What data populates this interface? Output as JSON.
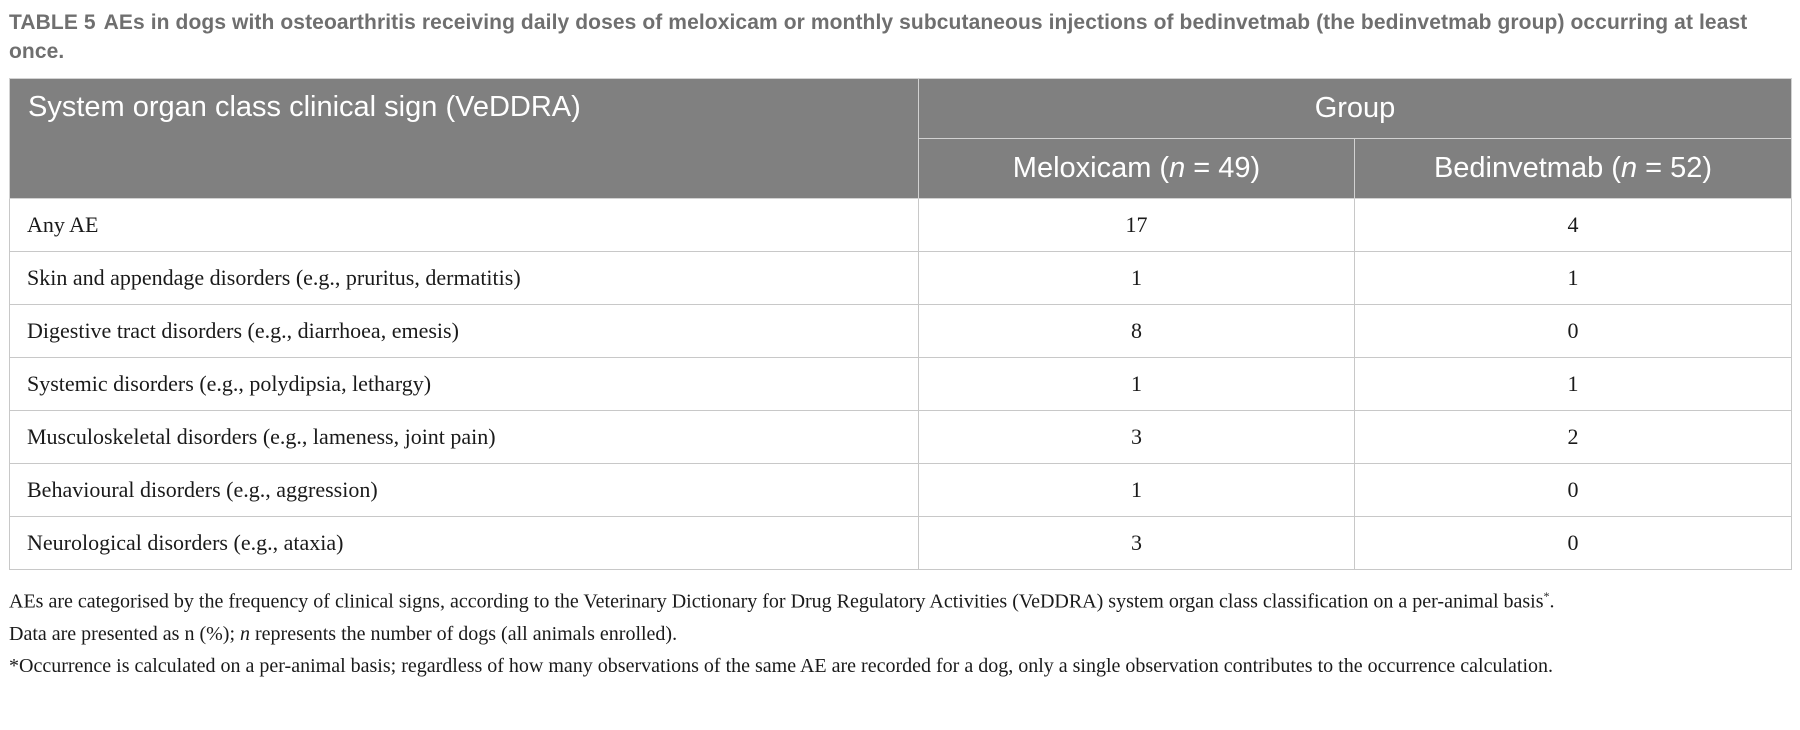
{
  "caption": {
    "label": "TABLE 5",
    "text": "AEs in dogs with osteoarthritis receiving daily doses of meloxicam or monthly subcutaneous injections of bedinvetmab (the bedinvetmab group) occurring at least once."
  },
  "table": {
    "header": {
      "system_col": "System organ class clinical sign (VeDDRA)",
      "group": "Group",
      "meloxicam": {
        "name": "Meloxicam",
        "n_symbol": "n",
        "n_rest": " = 49)"
      },
      "bedinvetmab": {
        "name": "Bedinvetmab",
        "n_symbol": "n",
        "n_rest": " = 52)"
      }
    },
    "rows": [
      {
        "label": "Any AE",
        "meloxicam": "17",
        "bedinvetmab": "4"
      },
      {
        "label": "Skin and appendage disorders (e.g., pruritus, dermatitis)",
        "meloxicam": "1",
        "bedinvetmab": "1"
      },
      {
        "label": "Digestive tract disorders (e.g., diarrhoea, emesis)",
        "meloxicam": "8",
        "bedinvetmab": "0"
      },
      {
        "label": "Systemic disorders (e.g., polydipsia, lethargy)",
        "meloxicam": "1",
        "bedinvetmab": "1"
      },
      {
        "label": "Musculoskeletal disorders (e.g., lameness, joint pain)",
        "meloxicam": "3",
        "bedinvetmab": "2"
      },
      {
        "label": "Behavioural disorders (e.g., aggression)",
        "meloxicam": "1",
        "bedinvetmab": "0"
      },
      {
        "label": "Neurological disorders (e.g., ataxia)",
        "meloxicam": "3",
        "bedinvetmab": "0"
      }
    ]
  },
  "notes": {
    "note1": "AEs are categorised by the frequency of clinical signs, according to the Veterinary Dictionary for Drug Regulatory Activities (VeDDRA) system organ class classification on a per-animal basis",
    "note1_mark": "*",
    "note1_end": ".",
    "note2_pre": "Data are presented as n (%); ",
    "note2_n": "n",
    "note2_post": " represents the number of dogs (all animals enrolled).",
    "note3": "*Occurrence is calculated on a per-animal basis; regardless of how many observations of the same AE are recorded for a dog, only a single observation contributes to the occurrence calculation."
  }
}
